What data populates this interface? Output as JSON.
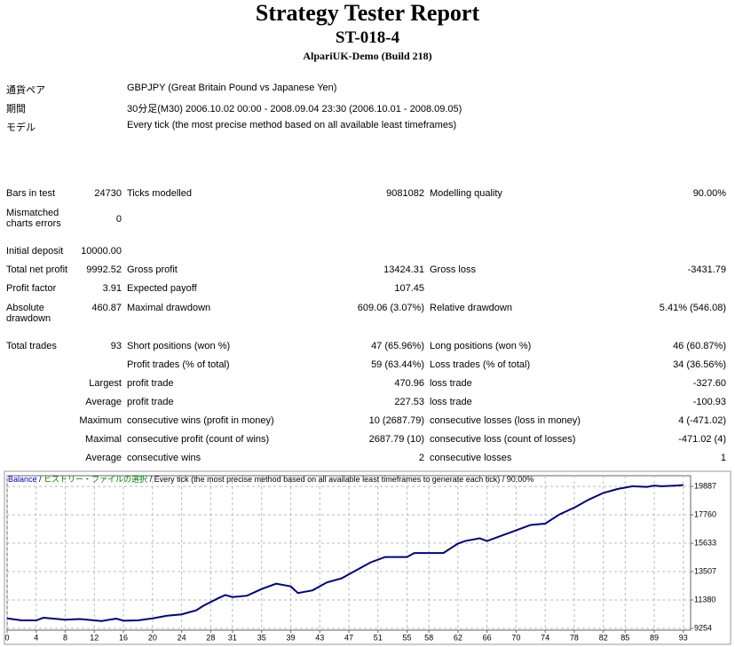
{
  "header": {
    "title": "Strategy Tester Report",
    "subtitle": "ST-018-4",
    "server": "AlpariUK-Demo (Build 218)"
  },
  "info": [
    {
      "label": "通貨ペア",
      "value": "GBPJPY (Great Britain Pound vs Japanese Yen)"
    },
    {
      "label": "期間",
      "value": "30分足(M30) 2006.10.02 00:00 - 2008.09.04 23:30 (2006.10.01 - 2008.09.05)"
    },
    {
      "label": "モデル",
      "value": "Every tick (the most precise method based on all available least timeframes)"
    }
  ],
  "stats": [
    {
      "label": "Bars in test",
      "value": "24730",
      "label2": "Ticks modelled",
      "value2": "9081082",
      "label3": "Modelling quality",
      "value3": "90.00%"
    },
    {
      "label": "Mismatched charts errors",
      "value": "0"
    },
    {
      "label": "Initial deposit",
      "value": "10000.00"
    },
    {
      "label": "Total net profit",
      "value": "9992.52",
      "label2": "Gross profit",
      "value2": "13424.31",
      "label3": "Gross loss",
      "value3": "-3431.79"
    },
    {
      "label": "Profit factor",
      "value": "3.91",
      "label2": "Expected payoff",
      "value2": "107.45"
    },
    {
      "label": "Absolute drawdown",
      "value": "460.87",
      "label2": "Maximal drawdown",
      "value2": "609.06 (3.07%)",
      "label3": "Relative drawdown",
      "value3": "5.41% (546.08)"
    },
    {
      "label": "Total trades",
      "value": "93",
      "label2": "Short positions (won %)",
      "value2": "47 (65.96%)",
      "label3": "Long positions (won %)",
      "value3": "46 (60.87%)"
    },
    {
      "label2": "Profit trades (% of total)",
      "value2": "59 (63.44%)",
      "label3": "Loss trades (% of total)",
      "value3": "34 (36.56%)"
    },
    {
      "prefix": "Largest",
      "label2": "profit trade",
      "value2": "470.96",
      "label3": "loss trade",
      "value3": "-327.60"
    },
    {
      "prefix": "Average",
      "label2": "profit trade",
      "value2": "227.53",
      "label3": "loss trade",
      "value3": "-100.93"
    },
    {
      "prefix": "Maximum",
      "label2": "consecutive wins (profit in money)",
      "value2": "10 (2687.79)",
      "label3": "consecutive losses (loss in money)",
      "value3": "4 (-471.02)"
    },
    {
      "prefix": "Maximal",
      "label2": "consecutive profit (count of wins)",
      "value2": "2687.79 (10)",
      "label3": "consecutive loss (count of losses)",
      "value3": "-471.02 (4)"
    },
    {
      "prefix": "Average",
      "label2": "consecutive wins",
      "value2": "2",
      "label3": "consecutive losses",
      "value3": "1"
    }
  ],
  "chart_data": {
    "type": "line",
    "legend": [
      {
        "text": "Balance",
        "color": "#0000cc"
      },
      {
        "text": " / ",
        "color": "#000000"
      },
      {
        "text": "ヒストリー・ファイルの選択",
        "color": "#008000"
      },
      {
        "text": " / Every tick (the most precise method based on all available least timeframes to generate each tick) / 90.00%",
        "color": "#000000"
      }
    ],
    "x": [
      0,
      2,
      4,
      5,
      8,
      10,
      13,
      15,
      16,
      18,
      20,
      22,
      24,
      26,
      27,
      29,
      30,
      31,
      33,
      35,
      37,
      39,
      40,
      42,
      44,
      46,
      47,
      50,
      52,
      55,
      56,
      60,
      62,
      63,
      65,
      66,
      68,
      70,
      72,
      74,
      76,
      78,
      80,
      82,
      84,
      86,
      88,
      89,
      90,
      92,
      93
    ],
    "series": [
      {
        "name": "Balance",
        "color": "#000080",
        "values": [
          10000,
          9850,
          9850,
          10050,
          9900,
          9950,
          9800,
          9980,
          9830,
          9850,
          10000,
          10200,
          10300,
          10600,
          10950,
          11500,
          11750,
          11600,
          11700,
          12200,
          12600,
          12400,
          11900,
          12100,
          12700,
          13000,
          13300,
          14200,
          14600,
          14600,
          14900,
          14900,
          15600,
          15800,
          16000,
          15800,
          16200,
          16600,
          17000,
          17100,
          17800,
          18300,
          18900,
          19400,
          19700,
          19900,
          19850,
          19950,
          19900,
          19950,
          19992.52
        ]
      }
    ],
    "xlim": [
      0,
      94
    ],
    "ylim": [
      9120,
      20690
    ],
    "xticks": [
      0,
      4,
      8,
      12,
      16,
      20,
      24,
      28,
      31,
      35,
      39,
      43,
      47,
      51,
      55,
      58,
      62,
      66,
      70,
      74,
      78,
      82,
      85,
      89,
      93
    ],
    "yticks": [
      9254,
      11380,
      13507,
      15633,
      17760,
      19887
    ],
    "grid": true
  }
}
